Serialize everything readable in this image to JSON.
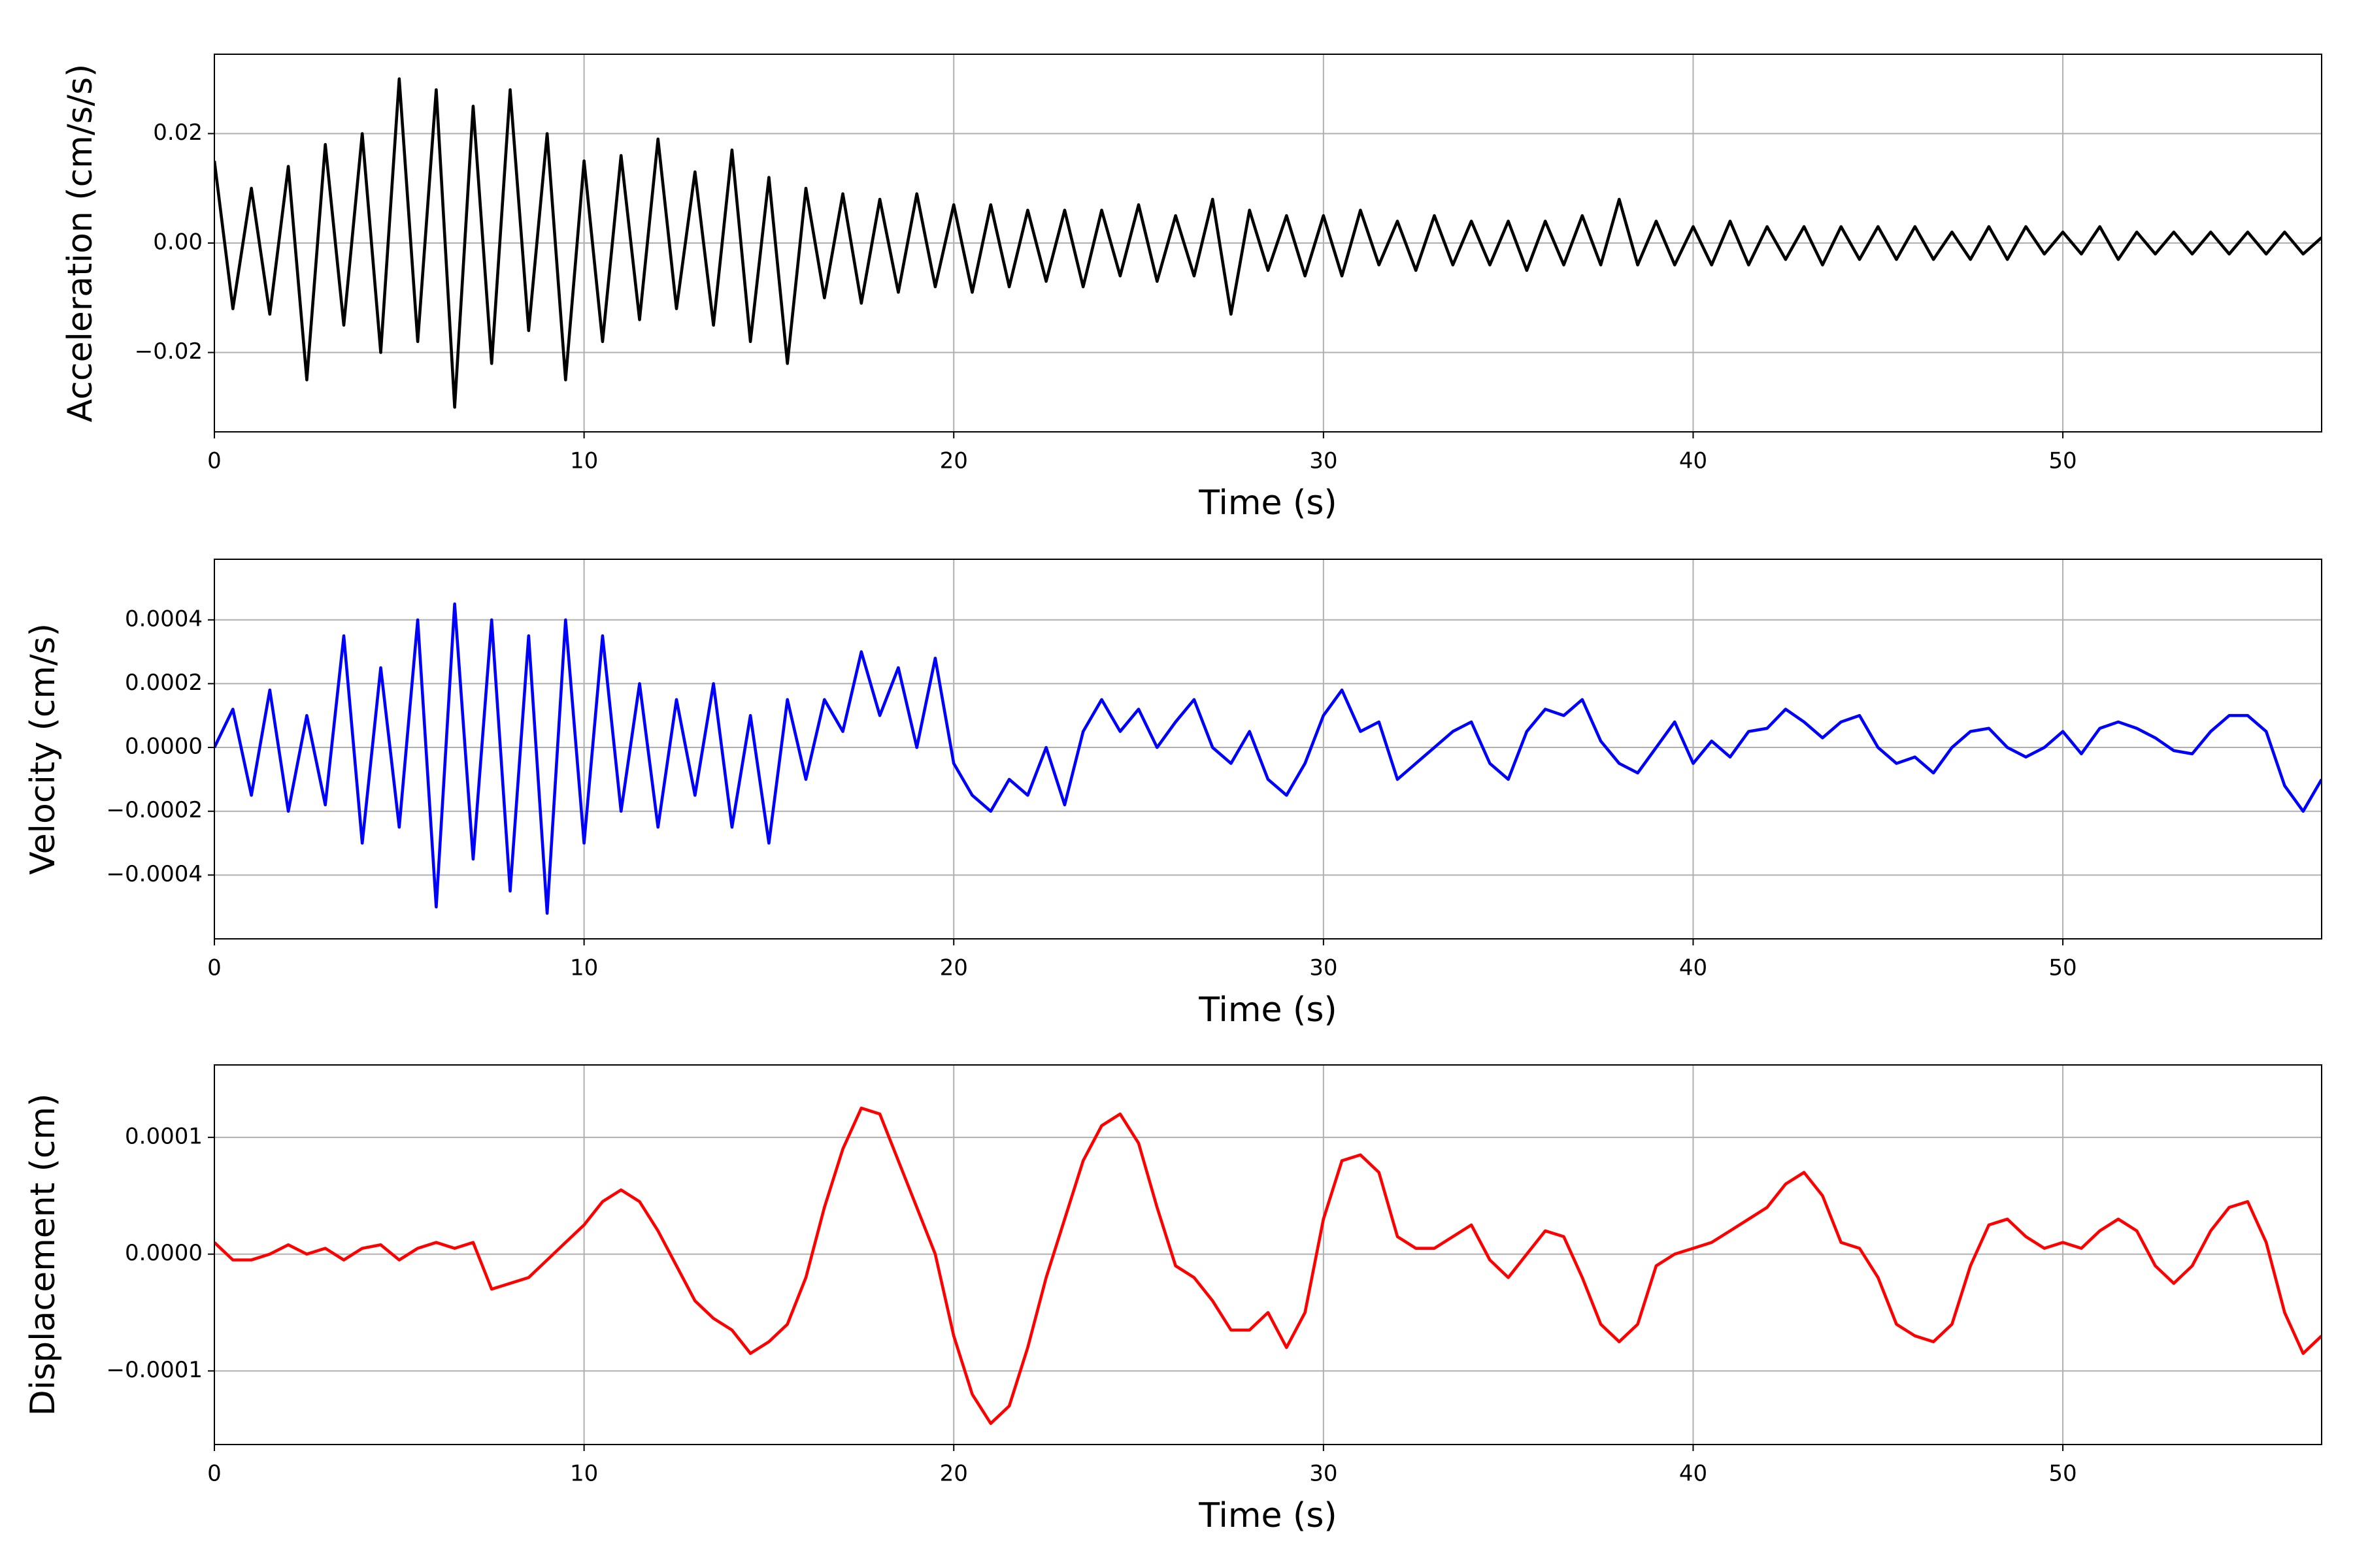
{
  "chart_data": [
    {
      "type": "line",
      "xlabel": "Time (s)",
      "ylabel": "Acceleration (cm/s/s)",
      "color": "#000000",
      "grid": true,
      "xlim": [
        0,
        57
      ],
      "xticks": [
        0,
        10,
        20,
        30,
        40,
        50
      ],
      "ylim": [
        -0.0345,
        0.0345
      ],
      "yticks": [
        {
          "value": -0.02,
          "label": "−0.02"
        },
        {
          "value": 0,
          "label": "0.00"
        },
        {
          "value": 0.02,
          "label": "0.02"
        }
      ],
      "x": [
        0,
        0.5,
        1,
        1.5,
        2,
        2.5,
        3,
        3.5,
        4,
        4.5,
        5,
        5.5,
        6,
        6.5,
        7,
        7.5,
        8,
        8.5,
        9,
        9.5,
        10,
        10.5,
        11,
        11.5,
        12,
        12.5,
        13,
        13.5,
        14,
        14.5,
        15,
        15.5,
        16,
        16.5,
        17,
        17.5,
        18,
        18.5,
        19,
        19.5,
        20,
        20.5,
        21,
        21.5,
        22,
        22.5,
        23,
        23.5,
        24,
        24.5,
        25,
        25.5,
        26,
        26.5,
        27,
        27.5,
        28,
        28.5,
        29,
        29.5,
        30,
        30.5,
        31,
        31.5,
        32,
        32.5,
        33,
        33.5,
        34,
        34.5,
        35,
        35.5,
        36,
        36.5,
        37,
        37.5,
        38,
        38.5,
        39,
        39.5,
        40,
        40.5,
        41,
        41.5,
        42,
        42.5,
        43,
        43.5,
        44,
        44.5,
        45,
        45.5,
        46,
        46.5,
        47,
        47.5,
        48,
        48.5,
        49,
        49.5,
        50,
        50.5,
        51,
        51.5,
        52,
        52.5,
        53,
        53.5,
        54,
        54.5,
        55,
        55.5,
        56,
        56.5,
        57
      ],
      "values": [
        0.015,
        -0.012,
        0.01,
        -0.013,
        0.014,
        -0.025,
        0.018,
        -0.015,
        0.02,
        -0.02,
        0.03,
        -0.018,
        0.028,
        -0.03,
        0.025,
        -0.022,
        0.028,
        -0.016,
        0.02,
        -0.025,
        0.015,
        -0.018,
        0.016,
        -0.014,
        0.019,
        -0.012,
        0.013,
        -0.015,
        0.017,
        -0.018,
        0.012,
        -0.022,
        0.01,
        -0.01,
        0.009,
        -0.011,
        0.008,
        -0.009,
        0.009,
        -0.008,
        0.007,
        -0.009,
        0.007,
        -0.008,
        0.006,
        -0.007,
        0.006,
        -0.008,
        0.006,
        -0.006,
        0.007,
        -0.007,
        0.005,
        -0.006,
        0.008,
        -0.013,
        0.006,
        -0.005,
        0.005,
        -0.006,
        0.005,
        -0.006,
        0.006,
        -0.004,
        0.004,
        -0.005,
        0.005,
        -0.004,
        0.004,
        -0.004,
        0.004,
        -0.005,
        0.004,
        -0.004,
        0.005,
        -0.004,
        0.008,
        -0.004,
        0.004,
        -0.004,
        0.003,
        -0.004,
        0.004,
        -0.004,
        0.003,
        -0.003,
        0.003,
        -0.004,
        0.003,
        -0.003,
        0.003,
        -0.003,
        0.003,
        -0.003,
        0.002,
        -0.003,
        0.003,
        -0.003,
        0.003,
        -0.002,
        0.002,
        -0.002,
        0.003,
        -0.003,
        0.002,
        -0.002,
        0.002,
        -0.002,
        0.002,
        -0.002,
        0.002,
        -0.002,
        0.002,
        -0.002,
        0.001
      ]
    },
    {
      "type": "line",
      "xlabel": "Time (s)",
      "ylabel": "Velocity (cm/s)",
      "color": "#0000ff",
      "grid": true,
      "xlim": [
        0,
        57
      ],
      "xticks": [
        0,
        10,
        20,
        30,
        40,
        50
      ],
      "ylim": [
        -0.0006,
        0.00059
      ],
      "yticks": [
        {
          "value": -0.0004,
          "label": "−0.0004"
        },
        {
          "value": -0.0002,
          "label": "−0.0002"
        },
        {
          "value": 0,
          "label": "0.0000"
        },
        {
          "value": 0.0002,
          "label": "0.0002"
        },
        {
          "value": 0.0004,
          "label": "0.0004"
        }
      ],
      "x": [
        0,
        0.5,
        1,
        1.5,
        2,
        2.5,
        3,
        3.5,
        4,
        4.5,
        5,
        5.5,
        6,
        6.5,
        7,
        7.5,
        8,
        8.5,
        9,
        9.5,
        10,
        10.5,
        11,
        11.5,
        12,
        12.5,
        13,
        13.5,
        14,
        14.5,
        15,
        15.5,
        16,
        16.5,
        17,
        17.5,
        18,
        18.5,
        19,
        19.5,
        20,
        20.5,
        21,
        21.5,
        22,
        22.5,
        23,
        23.5,
        24,
        24.5,
        25,
        25.5,
        26,
        26.5,
        27,
        27.5,
        28,
        28.5,
        29,
        29.5,
        30,
        30.5,
        31,
        31.5,
        32,
        32.5,
        33,
        33.5,
        34,
        34.5,
        35,
        35.5,
        36,
        36.5,
        37,
        37.5,
        38,
        38.5,
        39,
        39.5,
        40,
        40.5,
        41,
        41.5,
        42,
        42.5,
        43,
        43.5,
        44,
        44.5,
        45,
        45.5,
        46,
        46.5,
        47,
        47.5,
        48,
        48.5,
        49,
        49.5,
        50,
        50.5,
        51,
        51.5,
        52,
        52.5,
        53,
        53.5,
        54,
        54.5,
        55,
        55.5,
        56,
        56.5,
        57
      ],
      "values": [
        0,
        0.00012,
        -0.00015,
        0.00018,
        -0.0002,
        0.0001,
        -0.00018,
        0.00035,
        -0.0003,
        0.00025,
        -0.00025,
        0.0004,
        -0.0005,
        0.00045,
        -0.00035,
        0.0004,
        -0.00045,
        0.00035,
        -0.00052,
        0.0004,
        -0.0003,
        0.00035,
        -0.0002,
        0.0002,
        -0.00025,
        0.00015,
        -0.00015,
        0.0002,
        -0.00025,
        0.0001,
        -0.0003,
        0.00015,
        -0.0001,
        0.00015,
        5e-05,
        0.0003,
        0.0001,
        0.00025,
        0,
        0.00028,
        -5e-05,
        -0.00015,
        -0.0002,
        -0.0001,
        -0.00015,
        0,
        -0.00018,
        5e-05,
        0.00015,
        5e-05,
        0.00012,
        0,
        8e-05,
        0.00015,
        0,
        -5e-05,
        5e-05,
        -0.0001,
        -0.00015,
        -5e-05,
        0.0001,
        0.00018,
        5e-05,
        8e-05,
        -0.0001,
        -5e-05,
        0,
        5e-05,
        8e-05,
        -5e-05,
        -0.0001,
        5e-05,
        0.00012,
        0.0001,
        0.00015,
        2e-05,
        -5e-05,
        -8e-05,
        0,
        8e-05,
        -5e-05,
        2e-05,
        -3e-05,
        5e-05,
        6e-05,
        0.00012,
        8e-05,
        3e-05,
        8e-05,
        0.0001,
        0,
        -5e-05,
        -3e-05,
        -8e-05,
        0,
        5e-05,
        6e-05,
        0,
        -3e-05,
        0,
        5e-05,
        -2e-05,
        6e-05,
        8e-05,
        6e-05,
        3e-05,
        -1e-05,
        -2e-05,
        5e-05,
        0.0001,
        0.0001,
        5e-05,
        -0.00012,
        -0.0002,
        -0.0001
      ]
    },
    {
      "type": "line",
      "xlabel": "Time (s)",
      "ylabel": "Displacement (cm)",
      "color": "#ff0000",
      "grid": true,
      "xlim": [
        0,
        57
      ],
      "xticks": [
        0,
        10,
        20,
        30,
        40,
        50
      ],
      "ylim": [
        -0.000163,
        0.000162
      ],
      "yticks": [
        {
          "value": -0.0001,
          "label": "−0.0001"
        },
        {
          "value": 0,
          "label": "0.0000"
        },
        {
          "value": 0.0001,
          "label": "0.0001"
        }
      ],
      "x": [
        0,
        0.5,
        1,
        1.5,
        2,
        2.5,
        3,
        3.5,
        4,
        4.5,
        5,
        5.5,
        6,
        6.5,
        7,
        7.5,
        8,
        8.5,
        9,
        9.5,
        10,
        10.5,
        11,
        11.5,
        12,
        12.5,
        13,
        13.5,
        14,
        14.5,
        15,
        15.5,
        16,
        16.5,
        17,
        17.5,
        18,
        18.5,
        19,
        19.5,
        20,
        20.5,
        21,
        21.5,
        22,
        22.5,
        23,
        23.5,
        24,
        24.5,
        25,
        25.5,
        26,
        26.5,
        27,
        27.5,
        28,
        28.5,
        29,
        29.5,
        30,
        30.5,
        31,
        31.5,
        32,
        32.5,
        33,
        33.5,
        34,
        34.5,
        35,
        35.5,
        36,
        36.5,
        37,
        37.5,
        38,
        38.5,
        39,
        39.5,
        40,
        40.5,
        41,
        41.5,
        42,
        42.5,
        43,
        43.5,
        44,
        44.5,
        45,
        45.5,
        46,
        46.5,
        47,
        47.5,
        48,
        48.5,
        49,
        49.5,
        50,
        50.5,
        51,
        51.5,
        52,
        52.5,
        53,
        53.5,
        54,
        54.5,
        55,
        55.5,
        56,
        56.5,
        57
      ],
      "values": [
        1e-05,
        -5e-06,
        -5e-06,
        0,
        8e-06,
        0,
        5e-06,
        -5e-06,
        5e-06,
        8e-06,
        -5e-06,
        5e-06,
        1e-05,
        5e-06,
        1e-05,
        -3e-05,
        -2.5e-05,
        -2e-05,
        -5e-06,
        1e-05,
        2.5e-05,
        4.5e-05,
        5.5e-05,
        4.5e-05,
        2e-05,
        -1e-05,
        -4e-05,
        -5.5e-05,
        -6.5e-05,
        -8.5e-05,
        -7.5e-05,
        -6e-05,
        -2e-05,
        4e-05,
        9e-05,
        0.000125,
        0.00012,
        8e-05,
        4e-05,
        0,
        -7e-05,
        -0.00012,
        -0.000145,
        -0.00013,
        -8e-05,
        -2e-05,
        3e-05,
        8e-05,
        0.00011,
        0.00012,
        9.5e-05,
        4e-05,
        -1e-05,
        -2e-05,
        -4e-05,
        -6.5e-05,
        -6.5e-05,
        -5e-05,
        -8e-05,
        -5e-05,
        3e-05,
        8e-05,
        8.5e-05,
        7e-05,
        1.5e-05,
        5e-06,
        5e-06,
        1.5e-05,
        2.5e-05,
        -5e-06,
        -2e-05,
        0,
        2e-05,
        1.5e-05,
        -2e-05,
        -6e-05,
        -7.5e-05,
        -6e-05,
        -1e-05,
        0,
        5e-06,
        1e-05,
        2e-05,
        3e-05,
        4e-05,
        6e-05,
        7e-05,
        5e-05,
        1e-05,
        5e-06,
        -2e-05,
        -6e-05,
        -7e-05,
        -7.5e-05,
        -6e-05,
        -1e-05,
        2.5e-05,
        3e-05,
        1.5e-05,
        5e-06,
        1e-05,
        5e-06,
        2e-05,
        3e-05,
        2e-05,
        -1e-05,
        -2.5e-05,
        -1e-05,
        2e-05,
        4e-05,
        4.5e-05,
        1e-05,
        -5e-05,
        -8.5e-05,
        -7e-05
      ]
    }
  ]
}
